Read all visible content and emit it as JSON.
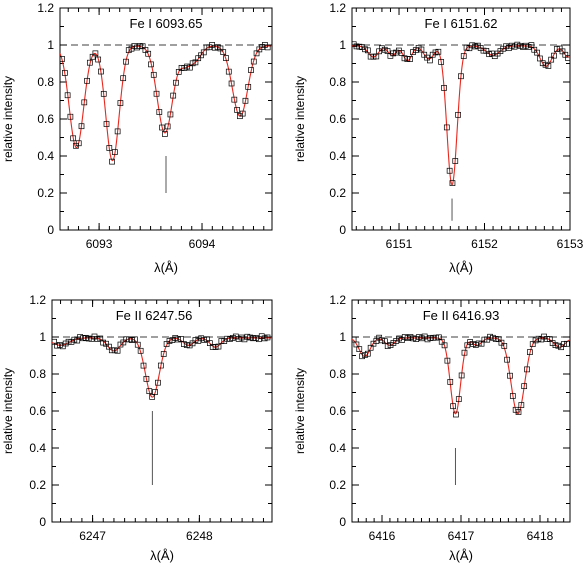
{
  "figure": {
    "colors": {
      "axis": "#000000",
      "fit": "#e8281e",
      "points": "#000000",
      "marker_line": "#555555",
      "reference": "#000000"
    },
    "y_label": "relative intensity",
    "x_label": "λ(Å)"
  },
  "chart_data": [
    {
      "type": "line",
      "title": "Fe I 6093.65",
      "xlabel": "λ(Å)",
      "ylabel": "relative intensity",
      "xlim": [
        6092.62,
        6094.68
      ],
      "ylim": [
        0,
        1.2
      ],
      "x_ticks": [
        6093,
        6094
      ],
      "y_ticks": [
        0,
        0.2,
        0.4,
        0.6,
        0.8,
        1,
        1.2
      ],
      "continuum_level": 1.0,
      "line_marker": {
        "x": 6093.65,
        "y_from": 0.2,
        "y_to": 0.4
      },
      "continuum": 0.995,
      "absorption_lines": [
        {
          "center": 6092.78,
          "depth": 0.55,
          "width": 0.07
        },
        {
          "center": 6093.13,
          "depth": 0.62,
          "width": 0.065
        },
        {
          "center": 6093.64,
          "depth": 0.47,
          "width": 0.075
        },
        {
          "center": 6093.83,
          "depth": 0.08,
          "width": 0.05
        },
        {
          "center": 6093.93,
          "depth": 0.08,
          "width": 0.06
        },
        {
          "center": 6094.37,
          "depth": 0.38,
          "width": 0.075
        }
      ],
      "series": [
        {
          "kind": "observed",
          "marker": "open-square",
          "x_start": 6092.64,
          "x_end": 6094.66,
          "x_step": 0.027
        },
        {
          "kind": "model",
          "marker": "line"
        }
      ]
    },
    {
      "type": "line",
      "title": "Fe I 6151.62",
      "xlabel": "λ(Å)",
      "ylabel": "relative intensity",
      "xlim": [
        6150.45,
        6153.0
      ],
      "ylim": [
        0,
        1.2
      ],
      "x_ticks": [
        6151,
        6152,
        6153
      ],
      "y_ticks": [
        0,
        0.2,
        0.4,
        0.6,
        0.8,
        1,
        1.2
      ],
      "continuum_level": 1.0,
      "line_marker": {
        "x": 6151.62,
        "y_from": 0.05,
        "y_to": 0.17
      },
      "continuum": 0.995,
      "absorption_lines": [
        {
          "center": 6150.7,
          "depth": 0.06,
          "width": 0.06
        },
        {
          "center": 6150.92,
          "depth": 0.05,
          "width": 0.05
        },
        {
          "center": 6151.1,
          "depth": 0.08,
          "width": 0.05
        },
        {
          "center": 6151.35,
          "depth": 0.07,
          "width": 0.06
        },
        {
          "center": 6151.62,
          "depth": 0.75,
          "width": 0.06
        },
        {
          "center": 6152.1,
          "depth": 0.05,
          "width": 0.08
        },
        {
          "center": 6152.72,
          "depth": 0.11,
          "width": 0.07
        },
        {
          "center": 6152.98,
          "depth": 0.06,
          "width": 0.05
        }
      ],
      "series": [
        {
          "kind": "observed",
          "marker": "open-square",
          "x_start": 6150.47,
          "x_end": 6152.98,
          "x_step": 0.033
        },
        {
          "kind": "model",
          "marker": "line"
        }
      ]
    },
    {
      "type": "line",
      "title": "Fe II 6247.56",
      "xlabel": "λ(Å)",
      "ylabel": "relative intensity",
      "xlim": [
        6246.62,
        6248.68
      ],
      "ylim": [
        0,
        1.2
      ],
      "x_ticks": [
        6247,
        6248
      ],
      "y_ticks": [
        0,
        0.2,
        0.4,
        0.6,
        0.8,
        1,
        1.2
      ],
      "continuum_level": 1.0,
      "line_marker": {
        "x": 6247.56,
        "y_from": 0.2,
        "y_to": 0.6
      },
      "continuum": 0.995,
      "absorption_lines": [
        {
          "center": 6246.7,
          "depth": 0.04,
          "width": 0.08
        },
        {
          "center": 6247.2,
          "depth": 0.07,
          "width": 0.06
        },
        {
          "center": 6247.56,
          "depth": 0.32,
          "width": 0.065
        },
        {
          "center": 6247.9,
          "depth": 0.04,
          "width": 0.05
        },
        {
          "center": 6248.15,
          "depth": 0.05,
          "width": 0.05
        }
      ],
      "series": [
        {
          "kind": "observed",
          "marker": "open-square",
          "x_start": 6246.64,
          "x_end": 6248.66,
          "x_step": 0.027
        },
        {
          "kind": "model",
          "marker": "line"
        }
      ]
    },
    {
      "type": "line",
      "title": "Fe II 6416.93",
      "xlabel": "λ(Å)",
      "ylabel": "relative intensity",
      "xlim": [
        6415.62,
        6418.38
      ],
      "ylim": [
        0,
        1.2
      ],
      "x_ticks": [
        6416,
        6417,
        6418
      ],
      "y_ticks": [
        0,
        0.2,
        0.4,
        0.6,
        0.8,
        1,
        1.2
      ],
      "continuum_level": 1.0,
      "line_marker": {
        "x": 6416.93,
        "y_from": 0.2,
        "y_to": 0.4
      },
      "continuum": 0.995,
      "absorption_lines": [
        {
          "center": 6415.78,
          "depth": 0.1,
          "width": 0.07
        },
        {
          "center": 6416.1,
          "depth": 0.04,
          "width": 0.06
        },
        {
          "center": 6416.93,
          "depth": 0.41,
          "width": 0.065
        },
        {
          "center": 6417.2,
          "depth": 0.04,
          "width": 0.06
        },
        {
          "center": 6417.72,
          "depth": 0.41,
          "width": 0.085
        },
        {
          "center": 6418.25,
          "depth": 0.05,
          "width": 0.07
        }
      ],
      "series": [
        {
          "kind": "observed",
          "marker": "open-square",
          "x_start": 6415.64,
          "x_end": 6418.36,
          "x_step": 0.036
        },
        {
          "kind": "model",
          "marker": "line"
        }
      ]
    }
  ]
}
